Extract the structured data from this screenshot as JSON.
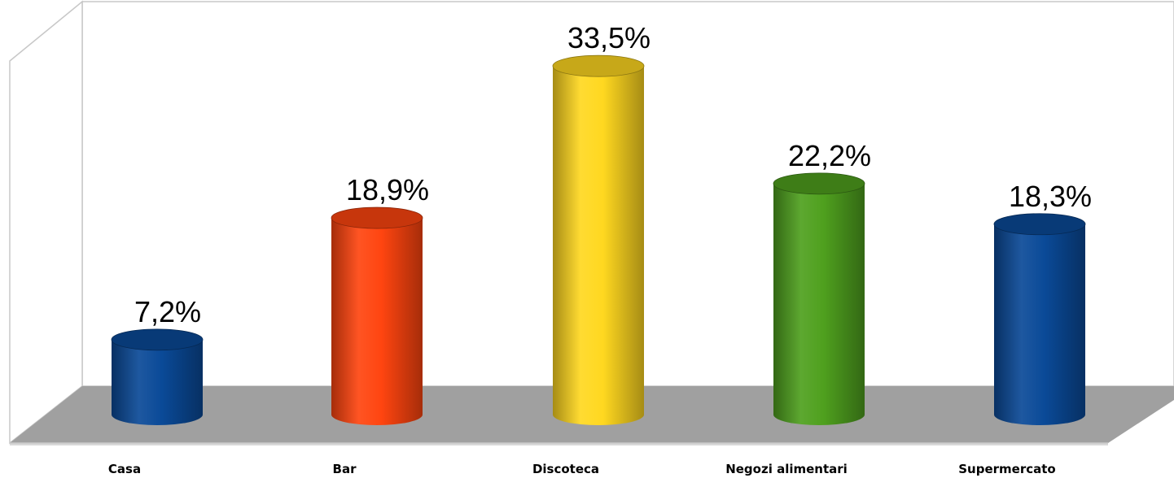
{
  "chart_data": {
    "type": "bar",
    "style": "3d-cylinder",
    "categories": [
      "Casa",
      "Bar",
      "Discoteca",
      "Negozi alimentari",
      "Supermercato"
    ],
    "values": [
      7.2,
      18.9,
      33.5,
      22.2,
      18.3
    ],
    "value_labels": [
      "7,2%",
      "18,9%",
      "33,5%",
      "22,2%",
      "18,3%"
    ],
    "colors": [
      "#0a4a98",
      "#ff4510",
      "#ffd820",
      "#4fa01e",
      "#0a4a98"
    ],
    "floor_color": "#a0a0a0",
    "title": "",
    "xlabel": "",
    "ylabel": "",
    "grid": false,
    "legend": "none"
  }
}
